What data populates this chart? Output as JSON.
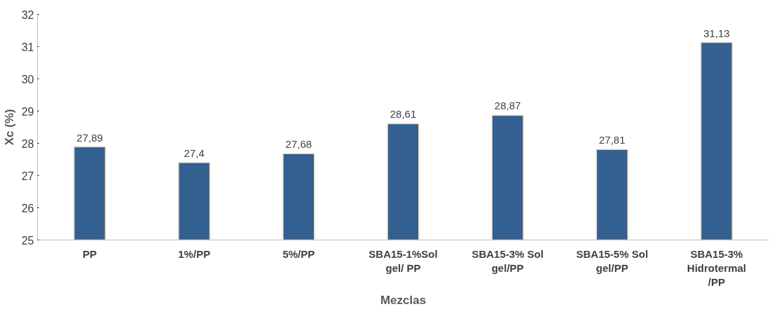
{
  "chart_data": {
    "type": "bar",
    "xlabel": "Mezclas",
    "ylabel": "Xc (%)",
    "categories": [
      "PP",
      "1%/PP",
      "5%/PP",
      "SBA15-1%Sol gel/ PP",
      "SBA15-3% Sol gel/PP",
      "SBA15-5% Sol gel/PP",
      "SBA15-3% Hidrotermal /PP"
    ],
    "values": [
      27.89,
      27.4,
      27.68,
      28.61,
      28.87,
      27.81,
      31.13
    ],
    "value_labels": [
      "27,89",
      "27,4",
      "27,68",
      "28,61",
      "28,87",
      "27,81",
      "31,13"
    ],
    "color": "#345f91",
    "ylim": [
      25,
      32
    ],
    "yticks": [
      25,
      26,
      27,
      28,
      29,
      30,
      31,
      32
    ],
    "grid": false
  }
}
